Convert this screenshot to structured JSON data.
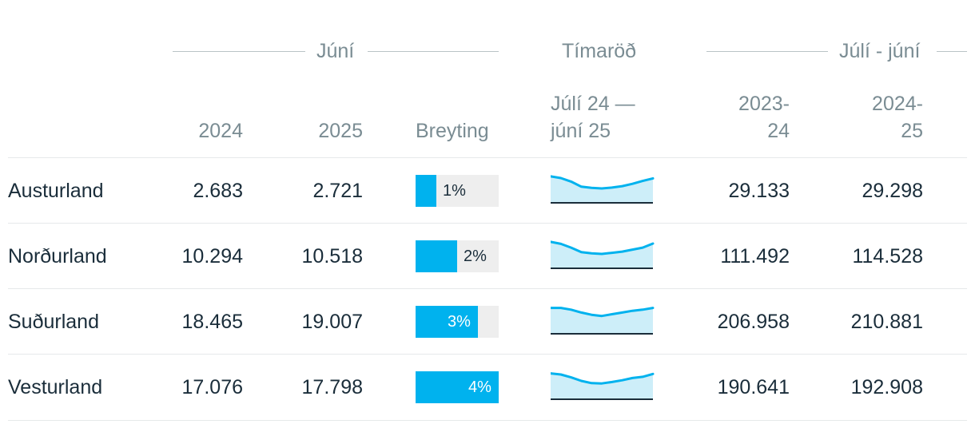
{
  "header": {
    "group_june": "Júní",
    "group_timeseries": "Tímaröð",
    "group_julyjune": "Júlí - júní",
    "col_2024": "2024",
    "col_2025": "2025",
    "col_change": "Breyting",
    "col_spark_line1": "Júlí 24 —",
    "col_spark_line2": "júní 25",
    "col_2324_line1": "2023-",
    "col_2324_line2": "24",
    "col_2425_line1": "2024-",
    "col_2425_line2": "25"
  },
  "colors": {
    "accent": "#00b2ee",
    "area": "#cdeef9",
    "bar_bg": "#eeeeee",
    "muted_text": "#7a8c93",
    "text": "#1a2d3a"
  },
  "rows": [
    {
      "region": "Austurland",
      "jun_2024": "2.683",
      "jun_2025": "2.721",
      "change_label": "1%",
      "change_pct": 1,
      "y_2324": "29.133",
      "y_2425": "29.298"
    },
    {
      "region": "Norðurland",
      "jun_2024": "10.294",
      "jun_2025": "10.518",
      "change_label": "2%",
      "change_pct": 2,
      "y_2324": "111.492",
      "y_2425": "114.528"
    },
    {
      "region": "Suðurland",
      "jun_2024": "18.465",
      "jun_2025": "19.007",
      "change_label": "3%",
      "change_pct": 3,
      "y_2324": "206.958",
      "y_2425": "210.881"
    },
    {
      "region": "Vesturland",
      "jun_2024": "17.076",
      "jun_2025": "17.798",
      "change_label": "4%",
      "change_pct": 4,
      "y_2324": "190.641",
      "y_2425": "192.908"
    }
  ],
  "chart_data": {
    "type": "table",
    "change_bar_max_pct": 4,
    "sparklines": [
      {
        "region": "Austurland",
        "values": [
          0.92,
          0.86,
          0.74,
          0.56,
          0.52,
          0.5,
          0.53,
          0.58,
          0.66,
          0.76,
          0.85
        ]
      },
      {
        "region": "Norðurland",
        "values": [
          0.92,
          0.85,
          0.72,
          0.56,
          0.52,
          0.5,
          0.54,
          0.58,
          0.65,
          0.72,
          0.86
        ]
      },
      {
        "region": "Suðurland",
        "values": [
          0.9,
          0.9,
          0.84,
          0.74,
          0.66,
          0.62,
          0.68,
          0.74,
          0.8,
          0.84,
          0.9
        ]
      },
      {
        "region": "Vesturland",
        "values": [
          0.9,
          0.86,
          0.76,
          0.64,
          0.56,
          0.55,
          0.6,
          0.66,
          0.74,
          0.78,
          0.88
        ]
      }
    ]
  }
}
